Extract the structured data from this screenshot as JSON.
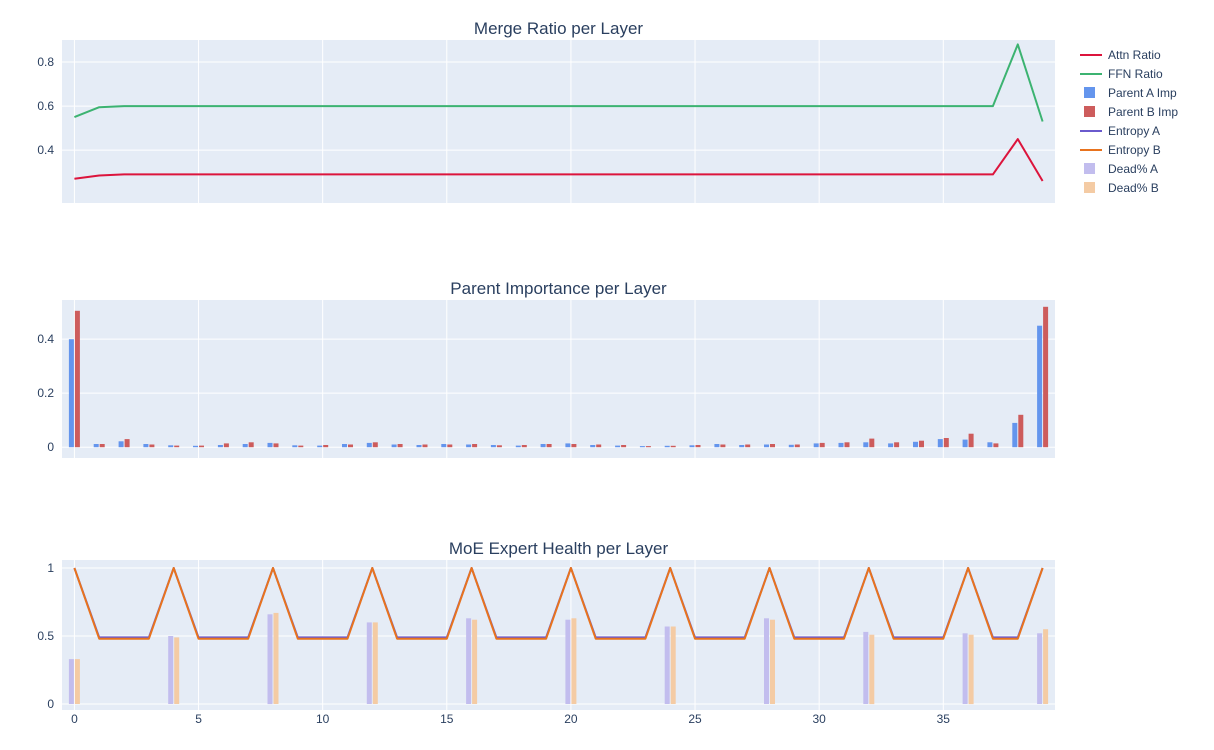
{
  "figure": {
    "bg": "#ffffff",
    "plot_bg": "#e5ecf6",
    "grid_color": "#ffffff",
    "text_color": "#2a3f5f"
  },
  "legend": {
    "items": [
      {
        "label": "Attn Ratio",
        "type": "line",
        "color": "#dc143c"
      },
      {
        "label": "FFN Ratio",
        "type": "line",
        "color": "#3cb371"
      },
      {
        "label": "Parent A Imp",
        "type": "bar",
        "color": "#6495ed"
      },
      {
        "label": "Parent B Imp",
        "type": "bar",
        "color": "#cd5c5c"
      },
      {
        "label": "Entropy A",
        "type": "line",
        "color": "#6a5acd"
      },
      {
        "label": "Entropy B",
        "type": "line",
        "color": "#e8731e"
      },
      {
        "label": "Dead% A",
        "type": "bar",
        "color": "#c2bdee"
      },
      {
        "label": "Dead% B",
        "type": "bar",
        "color": "#f4cba4"
      }
    ]
  },
  "chart_data": [
    {
      "type": "line",
      "title": "Merge Ratio per Layer",
      "xlabel": "",
      "ylabel": "",
      "xlim": [
        -0.5,
        39.5
      ],
      "ylim": [
        0.16,
        0.9
      ],
      "yticks": [
        0.4,
        0.6,
        0.8
      ],
      "xticks": [
        0,
        5,
        10,
        15,
        20,
        25,
        30,
        35
      ],
      "series": [
        {
          "name": "Attn Ratio",
          "color": "#dc143c",
          "values": [
            0.27,
            0.285,
            0.29,
            0.29,
            0.29,
            0.29,
            0.29,
            0.29,
            0.29,
            0.29,
            0.29,
            0.29,
            0.29,
            0.29,
            0.29,
            0.29,
            0.29,
            0.29,
            0.29,
            0.29,
            0.29,
            0.29,
            0.29,
            0.29,
            0.29,
            0.29,
            0.29,
            0.29,
            0.29,
            0.29,
            0.29,
            0.29,
            0.29,
            0.29,
            0.29,
            0.29,
            0.29,
            0.29,
            0.45,
            0.26
          ]
        },
        {
          "name": "FFN Ratio",
          "color": "#3cb371",
          "values": [
            0.55,
            0.595,
            0.6,
            0.6,
            0.6,
            0.6,
            0.6,
            0.6,
            0.6,
            0.6,
            0.6,
            0.6,
            0.6,
            0.6,
            0.6,
            0.6,
            0.6,
            0.6,
            0.6,
            0.6,
            0.6,
            0.6,
            0.6,
            0.6,
            0.6,
            0.6,
            0.6,
            0.6,
            0.6,
            0.6,
            0.6,
            0.6,
            0.6,
            0.6,
            0.6,
            0.6,
            0.6,
            0.6,
            0.88,
            0.53
          ]
        }
      ]
    },
    {
      "type": "bar",
      "title": "Parent Importance per Layer",
      "xlabel": "",
      "ylabel": "",
      "xlim": [
        -0.5,
        39.5
      ],
      "ylim": [
        -0.04,
        0.545
      ],
      "yticks": [
        0,
        0.2,
        0.4
      ],
      "xticks": [
        0,
        5,
        10,
        15,
        20,
        25,
        30,
        35
      ],
      "series": [
        {
          "name": "Parent A Imp",
          "color": "#6495ed",
          "values": [
            0.4,
            0.012,
            0.022,
            0.012,
            0.007,
            0.005,
            0.008,
            0.012,
            0.016,
            0.007,
            0.006,
            0.012,
            0.016,
            0.01,
            0.008,
            0.012,
            0.01,
            0.008,
            0.006,
            0.012,
            0.014,
            0.008,
            0.006,
            0.004,
            0.005,
            0.007,
            0.012,
            0.008,
            0.01,
            0.009,
            0.014,
            0.016,
            0.018,
            0.014,
            0.02,
            0.03,
            0.028,
            0.018,
            0.09,
            0.45
          ]
        },
        {
          "name": "Parent B Imp",
          "color": "#cd5c5c",
          "values": [
            0.505,
            0.012,
            0.03,
            0.01,
            0.006,
            0.006,
            0.014,
            0.018,
            0.014,
            0.006,
            0.008,
            0.01,
            0.018,
            0.012,
            0.01,
            0.01,
            0.012,
            0.007,
            0.008,
            0.012,
            0.012,
            0.01,
            0.008,
            0.004,
            0.005,
            0.008,
            0.01,
            0.01,
            0.012,
            0.01,
            0.016,
            0.018,
            0.032,
            0.018,
            0.024,
            0.034,
            0.05,
            0.014,
            0.12,
            0.52
          ]
        }
      ]
    },
    {
      "type": "mixed",
      "title": "MoE Expert Health per Layer",
      "xlabel": "",
      "ylabel": "",
      "xlim": [
        -0.5,
        39.5
      ],
      "ylim": [
        -0.044,
        1.059
      ],
      "yticks": [
        0,
        0.5,
        1
      ],
      "xticks": [
        0,
        5,
        10,
        15,
        20,
        25,
        30,
        35
      ],
      "bar_series": [
        {
          "name": "Dead% A",
          "color": "#c2bdee",
          "values": [
            0.33,
            0,
            0,
            0,
            0.5,
            0,
            0,
            0,
            0.66,
            0,
            0,
            0,
            0.6,
            0,
            0,
            0,
            0.63,
            0,
            0,
            0,
            0.62,
            0,
            0,
            0,
            0.57,
            0,
            0,
            0,
            0.63,
            0,
            0,
            0,
            0.53,
            0,
            0,
            0,
            0.52,
            0,
            0,
            0.52
          ]
        },
        {
          "name": "Dead% B",
          "color": "#f4cba4",
          "values": [
            0.33,
            0,
            0,
            0,
            0.49,
            0,
            0,
            0,
            0.67,
            0,
            0,
            0,
            0.6,
            0,
            0,
            0,
            0.62,
            0,
            0,
            0,
            0.63,
            0,
            0,
            0,
            0.57,
            0,
            0,
            0,
            0.62,
            0,
            0,
            0,
            0.51,
            0,
            0,
            0,
            0.51,
            0,
            0,
            0.55
          ]
        }
      ],
      "line_series": [
        {
          "name": "Entropy A",
          "color": "#6a5acd",
          "values": [
            1.0,
            0.49,
            0.49,
            0.49,
            1.0,
            0.49,
            0.49,
            0.49,
            1.0,
            0.49,
            0.49,
            0.49,
            1.0,
            0.49,
            0.49,
            0.49,
            1.0,
            0.49,
            0.49,
            0.49,
            1.0,
            0.49,
            0.49,
            0.49,
            1.0,
            0.49,
            0.49,
            0.49,
            1.0,
            0.49,
            0.49,
            0.49,
            1.0,
            0.49,
            0.49,
            0.49,
            1.0,
            0.49,
            0.49,
            1.0
          ]
        },
        {
          "name": "Entropy B",
          "color": "#e8731e",
          "values": [
            1.0,
            0.48,
            0.48,
            0.48,
            1.0,
            0.48,
            0.48,
            0.48,
            1.0,
            0.48,
            0.48,
            0.48,
            1.0,
            0.48,
            0.48,
            0.48,
            1.0,
            0.48,
            0.48,
            0.48,
            1.0,
            0.48,
            0.48,
            0.48,
            1.0,
            0.48,
            0.48,
            0.48,
            1.0,
            0.48,
            0.48,
            0.48,
            1.0,
            0.48,
            0.48,
            0.48,
            1.0,
            0.48,
            0.48,
            1.0
          ]
        }
      ]
    }
  ]
}
